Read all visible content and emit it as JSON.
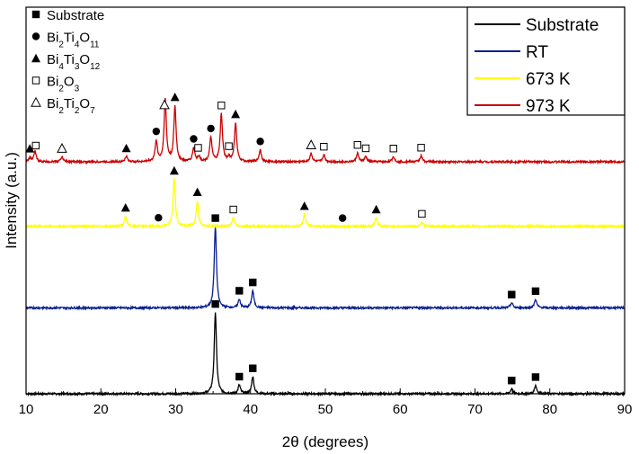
{
  "chart_data": {
    "type": "line",
    "xlabel": "2θ (degrees)",
    "ylabel": "Intensity (a.u.)",
    "xlim": [
      10,
      90
    ],
    "ylim": [
      0,
      4.5
    ],
    "xticks": [
      10,
      20,
      30,
      40,
      50,
      60,
      70,
      80,
      90
    ],
    "y_tick_labels": false,
    "grid": false,
    "legend": {
      "position": "top-right",
      "entries": [
        {
          "label": "Substrate",
          "color": "#000000"
        },
        {
          "label": "RT",
          "color": "#0a1f8f"
        },
        {
          "label": "673 K",
          "color": "#ffff00"
        },
        {
          "label": "973 K",
          "color": "#cc0000"
        }
      ]
    },
    "phase_key": [
      {
        "marker": "filled-square",
        "label": "Substrate"
      },
      {
        "marker": "filled-circle",
        "label": "Bi2Ti4O11",
        "parts": [
          [
            "Bi",
            ""
          ],
          [
            "2",
            "sub"
          ],
          [
            "Ti",
            ""
          ],
          [
            "4",
            "sub"
          ],
          [
            "O",
            ""
          ],
          [
            "11",
            "sub"
          ]
        ]
      },
      {
        "marker": "filled-triangle",
        "label": "Bi4Ti3O12",
        "parts": [
          [
            "Bi",
            ""
          ],
          [
            "4",
            "sub"
          ],
          [
            "Ti",
            ""
          ],
          [
            "3",
            "sub"
          ],
          [
            "O",
            ""
          ],
          [
            "12",
            "sub"
          ]
        ]
      },
      {
        "marker": "open-square",
        "label": "Bi2O3",
        "parts": [
          [
            "Bi",
            ""
          ],
          [
            "2",
            "sub"
          ],
          [
            "O",
            ""
          ],
          [
            "3",
            "sub"
          ]
        ]
      },
      {
        "marker": "open-triangle",
        "label": "Bi2Ti2O7",
        "parts": [
          [
            "Bi",
            ""
          ],
          [
            "2",
            "sub"
          ],
          [
            "Ti",
            ""
          ],
          [
            "2",
            "sub"
          ],
          [
            "O",
            ""
          ],
          [
            "7",
            "sub"
          ]
        ]
      }
    ],
    "series": [
      {
        "name": "Substrate",
        "color": "#000000",
        "baseline": 0.0,
        "peaks": [
          [
            35.3,
            0.95
          ],
          [
            38.5,
            0.1
          ],
          [
            40.3,
            0.2
          ],
          [
            74.9,
            0.06
          ],
          [
            78.1,
            0.1
          ]
        ],
        "markers": [
          {
            "x": 35.3,
            "type": "filled-square"
          },
          {
            "x": 38.5,
            "type": "filled-square"
          },
          {
            "x": 40.3,
            "type": "filled-square"
          },
          {
            "x": 74.9,
            "type": "filled-square"
          },
          {
            "x": 78.1,
            "type": "filled-square"
          }
        ]
      },
      {
        "name": "RT",
        "color": "#0a1f8f",
        "baseline": 1.0,
        "peaks": [
          [
            35.3,
            0.95
          ],
          [
            38.5,
            0.1
          ],
          [
            40.3,
            0.2
          ],
          [
            74.9,
            0.06
          ],
          [
            78.1,
            0.1
          ]
        ],
        "markers": [
          {
            "x": 35.3,
            "type": "filled-square"
          },
          {
            "x": 38.5,
            "type": "filled-square"
          },
          {
            "x": 40.3,
            "type": "filled-square"
          },
          {
            "x": 74.9,
            "type": "filled-square"
          },
          {
            "x": 78.1,
            "type": "filled-square"
          }
        ]
      },
      {
        "name": "673 K",
        "color": "#ffff00",
        "baseline": 1.95,
        "peaks": [
          [
            23.3,
            0.12
          ],
          [
            29.8,
            0.55
          ],
          [
            32.9,
            0.3
          ],
          [
            37.7,
            0.1
          ],
          [
            47.2,
            0.14
          ],
          [
            56.8,
            0.1
          ],
          [
            62.9,
            0.05
          ]
        ],
        "markers": [
          {
            "x": 23.3,
            "type": "filled-triangle"
          },
          {
            "x": 27.7,
            "type": "filled-circle"
          },
          {
            "x": 29.8,
            "type": "filled-triangle"
          },
          {
            "x": 32.9,
            "type": "filled-triangle"
          },
          {
            "x": 37.7,
            "type": "open-square"
          },
          {
            "x": 47.2,
            "type": "filled-triangle"
          },
          {
            "x": 52.3,
            "type": "filled-circle"
          },
          {
            "x": 56.8,
            "type": "filled-triangle"
          },
          {
            "x": 62.9,
            "type": "open-square"
          }
        ]
      },
      {
        "name": "973 K",
        "color": "#cc0000",
        "baseline": 2.7,
        "peaks": [
          [
            10.5,
            0.05
          ],
          [
            11.2,
            0.12
          ],
          [
            14.8,
            0.06
          ],
          [
            23.4,
            0.06
          ],
          [
            27.4,
            0.24
          ],
          [
            28.6,
            0.72
          ],
          [
            29.9,
            0.64
          ],
          [
            32.4,
            0.16
          ],
          [
            33.1,
            0.06
          ],
          [
            34.7,
            0.28
          ],
          [
            36.1,
            0.55
          ],
          [
            37.1,
            0.05
          ],
          [
            38.0,
            0.45
          ],
          [
            41.3,
            0.14
          ],
          [
            48.1,
            0.1
          ],
          [
            49.8,
            0.08
          ],
          [
            54.3,
            0.1
          ],
          [
            55.4,
            0.06
          ],
          [
            59.1,
            0.06
          ],
          [
            62.8,
            0.07
          ]
        ],
        "markers": [
          {
            "x": 10.5,
            "type": "filled-triangle"
          },
          {
            "x": 11.3,
            "type": "open-square"
          },
          {
            "x": 14.8,
            "type": "open-triangle"
          },
          {
            "x": 23.4,
            "type": "filled-triangle"
          },
          {
            "x": 27.4,
            "type": "filled-circle"
          },
          {
            "x": 28.5,
            "type": "open-triangle"
          },
          {
            "x": 29.9,
            "type": "filled-triangle"
          },
          {
            "x": 32.4,
            "type": "filled-circle"
          },
          {
            "x": 33.0,
            "type": "open-square"
          },
          {
            "x": 34.7,
            "type": "filled-circle"
          },
          {
            "x": 36.1,
            "type": "open-square"
          },
          {
            "x": 37.1,
            "type": "open-square"
          },
          {
            "x": 38.0,
            "type": "filled-triangle"
          },
          {
            "x": 41.3,
            "type": "filled-circle"
          },
          {
            "x": 48.1,
            "type": "open-triangle"
          },
          {
            "x": 49.8,
            "type": "open-square"
          },
          {
            "x": 54.3,
            "type": "open-square"
          },
          {
            "x": 55.4,
            "type": "open-square"
          },
          {
            "x": 59.1,
            "type": "open-square"
          },
          {
            "x": 62.8,
            "type": "open-square"
          }
        ]
      }
    ]
  }
}
